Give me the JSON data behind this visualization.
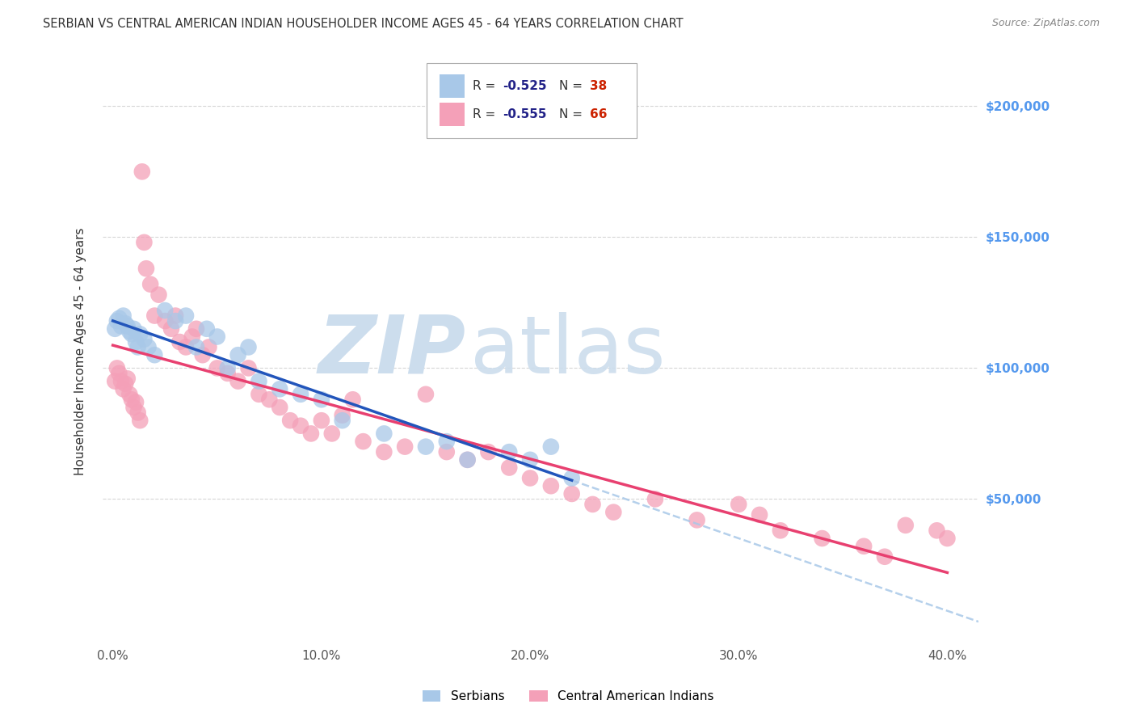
{
  "title": "SERBIAN VS CENTRAL AMERICAN INDIAN HOUSEHOLDER INCOME AGES 45 - 64 YEARS CORRELATION CHART",
  "source": "Source: ZipAtlas.com",
  "ylabel": "Householder Income Ages 45 - 64 years",
  "xtick_labels": [
    "0.0%",
    "10.0%",
    "20.0%",
    "30.0%",
    "40.0%"
  ],
  "xtick_vals": [
    0.0,
    0.1,
    0.2,
    0.3,
    0.4
  ],
  "ytick_labels": [
    "$50,000",
    "$100,000",
    "$150,000",
    "$200,000"
  ],
  "ytick_vals": [
    50000,
    100000,
    150000,
    200000
  ],
  "ylim": [
    -5000,
    218000
  ],
  "xlim": [
    -0.005,
    0.415
  ],
  "serbian_R": -0.525,
  "serbian_N": 38,
  "central_american_R": -0.555,
  "central_american_N": 66,
  "serbian_color": "#a8c8e8",
  "central_american_color": "#f4a0b8",
  "serbian_line_color": "#2255bb",
  "central_american_line_color": "#e84070",
  "serbian_ext_color": "#a8c8e8",
  "bg_color": "#ffffff",
  "grid_color": "#cccccc",
  "legend_R_color": "#222288",
  "legend_N_color": "#cc2200",
  "watermark_zip_color": "#ccdded",
  "watermark_atlas_color": "#ccdded",
  "serbian_x": [
    0.001,
    0.002,
    0.003,
    0.004,
    0.005,
    0.006,
    0.007,
    0.008,
    0.009,
    0.01,
    0.011,
    0.012,
    0.013,
    0.015,
    0.017,
    0.02,
    0.025,
    0.03,
    0.035,
    0.04,
    0.045,
    0.05,
    0.055,
    0.06,
    0.065,
    0.07,
    0.08,
    0.09,
    0.1,
    0.11,
    0.13,
    0.15,
    0.16,
    0.17,
    0.19,
    0.2,
    0.21,
    0.22
  ],
  "serbian_y": [
    115000,
    118000,
    119000,
    116000,
    120000,
    117000,
    116000,
    114000,
    113000,
    115000,
    110000,
    108000,
    113000,
    111000,
    108000,
    105000,
    122000,
    118000,
    120000,
    108000,
    115000,
    112000,
    100000,
    105000,
    108000,
    95000,
    92000,
    90000,
    88000,
    80000,
    75000,
    70000,
    72000,
    65000,
    68000,
    65000,
    70000,
    58000
  ],
  "central_x": [
    0.001,
    0.002,
    0.003,
    0.004,
    0.005,
    0.006,
    0.007,
    0.008,
    0.009,
    0.01,
    0.011,
    0.012,
    0.013,
    0.014,
    0.015,
    0.016,
    0.018,
    0.02,
    0.022,
    0.025,
    0.028,
    0.03,
    0.032,
    0.035,
    0.038,
    0.04,
    0.043,
    0.046,
    0.05,
    0.055,
    0.06,
    0.065,
    0.07,
    0.075,
    0.08,
    0.085,
    0.09,
    0.095,
    0.1,
    0.105,
    0.11,
    0.115,
    0.12,
    0.13,
    0.14,
    0.15,
    0.16,
    0.17,
    0.18,
    0.19,
    0.2,
    0.21,
    0.22,
    0.23,
    0.24,
    0.26,
    0.28,
    0.3,
    0.31,
    0.32,
    0.34,
    0.36,
    0.37,
    0.38,
    0.395,
    0.4
  ],
  "central_y": [
    95000,
    100000,
    98000,
    95000,
    92000,
    94000,
    96000,
    90000,
    88000,
    85000,
    87000,
    83000,
    80000,
    175000,
    148000,
    138000,
    132000,
    120000,
    128000,
    118000,
    115000,
    120000,
    110000,
    108000,
    112000,
    115000,
    105000,
    108000,
    100000,
    98000,
    95000,
    100000,
    90000,
    88000,
    85000,
    80000,
    78000,
    75000,
    80000,
    75000,
    82000,
    88000,
    72000,
    68000,
    70000,
    90000,
    68000,
    65000,
    68000,
    62000,
    58000,
    55000,
    52000,
    48000,
    45000,
    50000,
    42000,
    48000,
    44000,
    38000,
    35000,
    32000,
    28000,
    40000,
    38000,
    35000
  ]
}
